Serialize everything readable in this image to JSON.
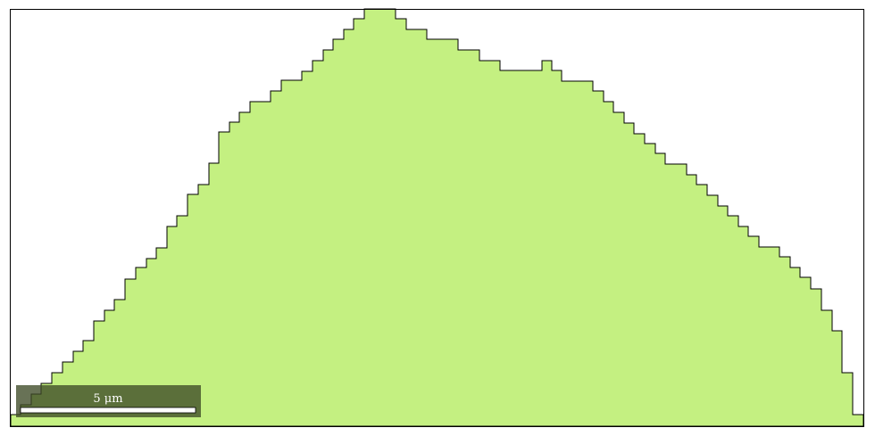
{
  "image": {
    "background_color": "#ffffff",
    "grain_fill_color": "#c4f081",
    "grain_outline_color": "#000000",
    "frame_color": "#000000"
  },
  "scalebar": {
    "label": "5 μm",
    "box_color": "#3d4a26",
    "bar_color": "#ffffff",
    "text_color": "#ffffff"
  }
}
